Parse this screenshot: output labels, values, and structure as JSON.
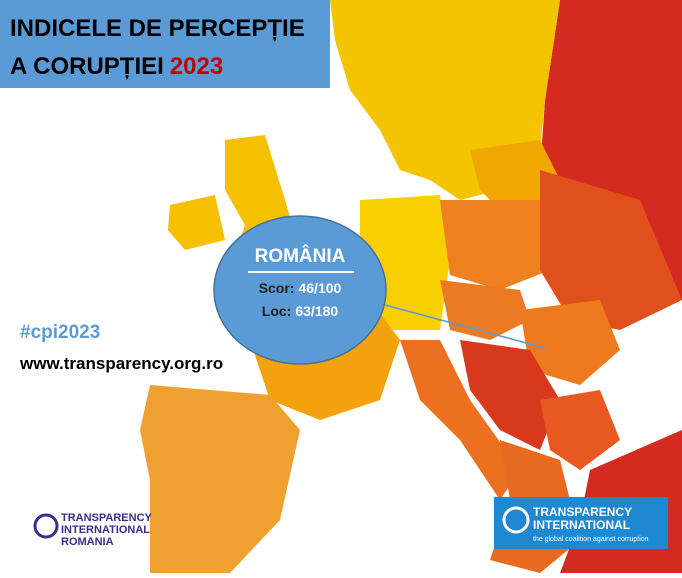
{
  "header": {
    "title_line1": "INDICELE DE PERCEPȚIE",
    "title_line2": "A CORUPȚIEI",
    "year": "2023"
  },
  "callout": {
    "country": "ROMÂNIA",
    "score_label": "Scor:",
    "score": "46/100",
    "rank_label": "Loc:",
    "rank": "63/180"
  },
  "hashtag": "#cpi2023",
  "website": "www.transparency.org.ro",
  "logo_left": {
    "line1": "TRANSPARENCY",
    "line2": "INTERNATIONAL",
    "line3": "ROMANIA"
  },
  "logo_right": {
    "line1": "TRANSPARENCY",
    "line2": "INTERNATIONAL",
    "tagline": "the global coalition against corruption"
  }
}
